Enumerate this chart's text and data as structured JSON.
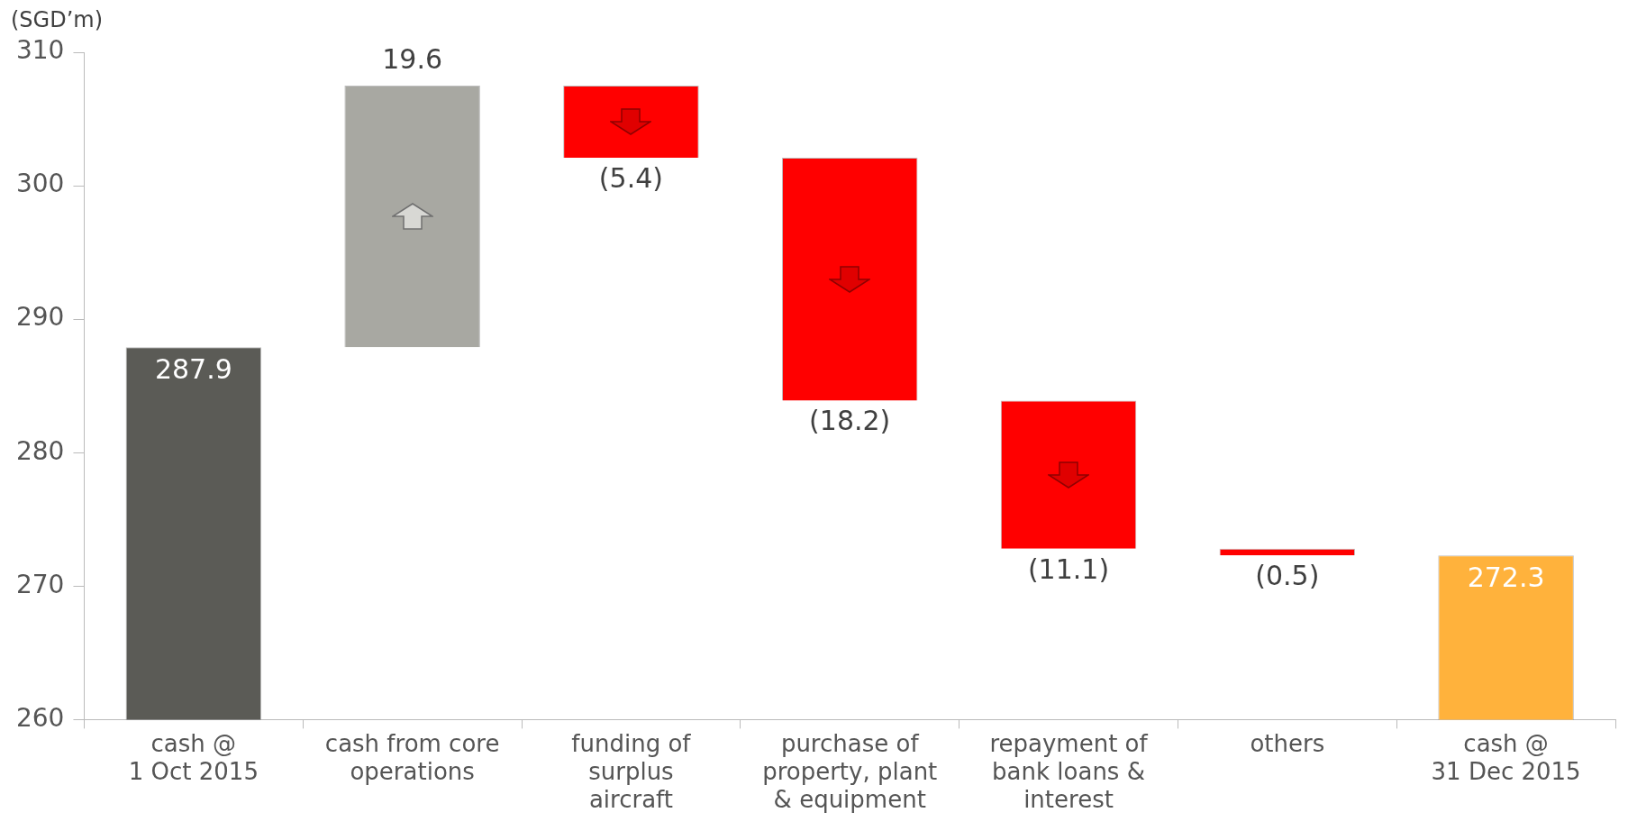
{
  "chart_data": {
    "type": "bar",
    "ylabel": "(SGD’m)",
    "categories": [
      "cash @\n1 Oct 2015",
      "cash from core\noperations",
      "funding of\nsurplus\naircraft",
      "purchase of\nproperty, plant\n& equipment",
      "repayment of\nbank loans &\ninterest",
      "others",
      "cash @\n31 Dec 2015"
    ],
    "values": [
      287.9,
      19.6,
      -5.4,
      -18.2,
      -11.1,
      -0.5,
      272.3
    ],
    "base": [
      null,
      287.9,
      307.5,
      302.1,
      283.9,
      272.8,
      null
    ],
    "colors": [
      "#5b5b56",
      "#a8a8a2",
      "#ff0000",
      "#ff0000",
      "#ff0000",
      "#ff0000",
      "#ffb23c"
    ],
    "value_labels": [
      "287.9",
      "19.6",
      "(5.4)",
      "(18.2)",
      "(11.1)",
      "(0.5)",
      "272.3"
    ],
    "ylim": [
      260,
      310
    ],
    "yticks": [
      260,
      270,
      280,
      290,
      300,
      310
    ],
    "grid": false,
    "legend": false
  }
}
